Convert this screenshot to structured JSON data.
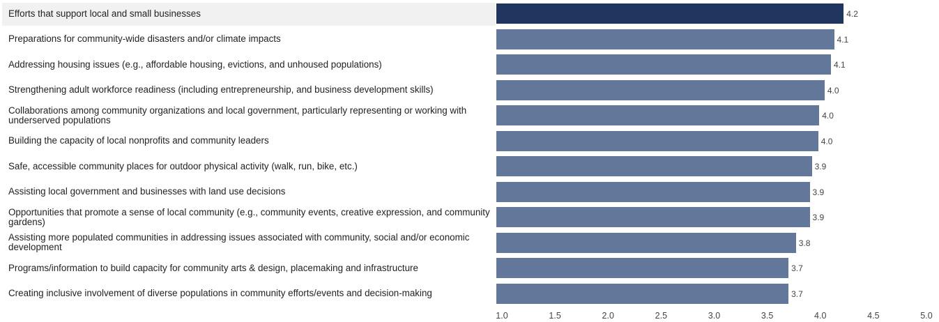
{
  "chart_data": {
    "type": "bar",
    "orientation": "horizontal",
    "categories": [
      "Efforts that support local and small businesses",
      "Preparations for community-wide disasters and/or climate impacts",
      "Addressing housing issues (e.g., affordable housing, evictions, and unhoused populations)",
      "Strengthening adult workforce readiness (including entrepreneurship, and business development skills)",
      "Collaborations among community organizations and local government, particularly representing or working with underserved populations",
      "Building the capacity of local nonprofits and community leaders",
      "Safe, accessible community places for outdoor physical activity (walk, run, bike, etc.)",
      "Assisting local government and businesses with land use decisions",
      "Opportunities that promote a sense of local community (e.g., community events, creative expression, and community gardens)",
      "Assisting more populated communities in addressing issues associated with community, social and/or economic development",
      "Programs/information to build capacity for community arts & design, placemaking and infrastructure",
      "Creating inclusive involvement of diverse populations in community efforts/events and decision-making"
    ],
    "values": [
      4.22,
      4.13,
      4.1,
      4.04,
      3.99,
      3.98,
      3.92,
      3.9,
      3.9,
      3.77,
      3.7,
      3.7
    ],
    "value_labels": [
      "4.2",
      "4.1",
      "4.1",
      "4.0",
      "4.0",
      "4.0",
      "3.9",
      "3.9",
      "3.9",
      "3.8",
      "3.7",
      "3.7"
    ],
    "xlim": [
      1.0,
      5.0
    ],
    "x_ticks": [
      "1.0",
      "1.5",
      "2.0",
      "2.5",
      "3.0",
      "3.5",
      "4.0",
      "4.5",
      "5.0"
    ],
    "title": "",
    "xlabel": "",
    "ylabel": "",
    "grid": false,
    "legend": "none",
    "highlighted_index": 0,
    "colors": {
      "highlight_bar": "#1f355e",
      "bar": "#63779a",
      "highlight_row_bg": "#f1f1f2"
    }
  }
}
